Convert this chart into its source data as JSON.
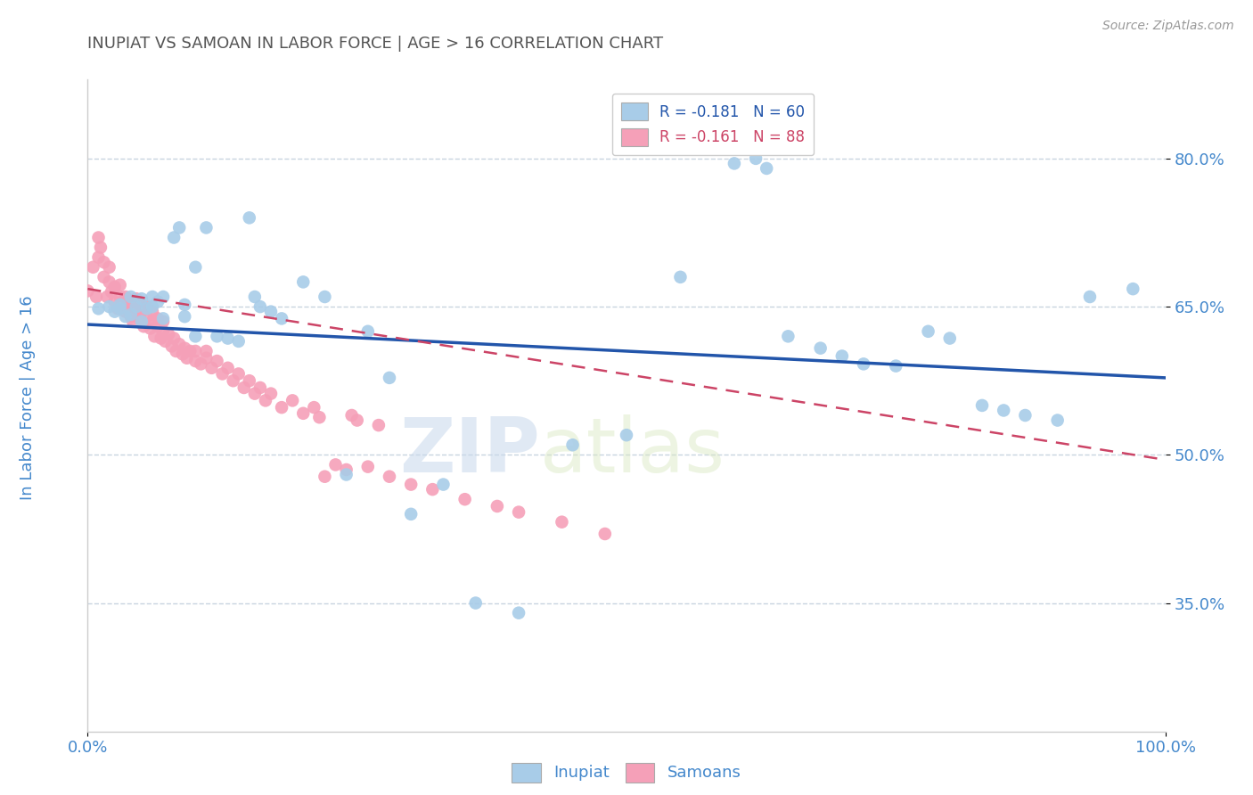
{
  "title": "INUPIAT VS SAMOAN IN LABOR FORCE | AGE > 16 CORRELATION CHART",
  "source": "Source: ZipAtlas.com",
  "ylabel": "In Labor Force | Age > 16",
  "watermark_zip": "ZIP",
  "watermark_atlas": "atlas",
  "legend_inupiat": "R = -0.181   N = 60",
  "legend_samoans": "R = -0.161   N = 88",
  "inupiat_color": "#a8cce8",
  "samoan_color": "#f5a0b8",
  "inupiat_line_color": "#2255aa",
  "samoan_line_color": "#cc4466",
  "title_color": "#555555",
  "axis_label_color": "#4488cc",
  "tick_color": "#4488cc",
  "grid_color": "#c8d4e0",
  "background_color": "#ffffff",
  "xlim": [
    0.0,
    1.0
  ],
  "ylim": [
    0.22,
    0.88
  ],
  "yticks": [
    0.35,
    0.5,
    0.65,
    0.8
  ],
  "ytick_labels": [
    "35.0%",
    "50.0%",
    "65.0%",
    "80.0%"
  ],
  "inupiat_line_x": [
    0.0,
    1.0
  ],
  "inupiat_line_y": [
    0.632,
    0.578
  ],
  "samoan_line_x": [
    0.0,
    1.0
  ],
  "samoan_line_y": [
    0.668,
    0.495
  ],
  "inupiat_x": [
    0.01,
    0.02,
    0.025,
    0.03,
    0.03,
    0.035,
    0.04,
    0.04,
    0.045,
    0.05,
    0.05,
    0.055,
    0.06,
    0.06,
    0.065,
    0.07,
    0.07,
    0.08,
    0.085,
    0.09,
    0.09,
    0.1,
    0.1,
    0.11,
    0.12,
    0.13,
    0.14,
    0.15,
    0.155,
    0.16,
    0.17,
    0.18,
    0.2,
    0.22,
    0.24,
    0.26,
    0.28,
    0.3,
    0.33,
    0.36,
    0.4,
    0.45,
    0.5,
    0.55,
    0.6,
    0.62,
    0.63,
    0.65,
    0.68,
    0.7,
    0.72,
    0.75,
    0.78,
    0.8,
    0.83,
    0.85,
    0.87,
    0.9,
    0.93,
    0.97
  ],
  "inupiat_y": [
    0.648,
    0.65,
    0.645,
    0.648,
    0.652,
    0.64,
    0.66,
    0.642,
    0.65,
    0.635,
    0.658,
    0.648,
    0.66,
    0.65,
    0.655,
    0.638,
    0.66,
    0.72,
    0.73,
    0.652,
    0.64,
    0.69,
    0.62,
    0.73,
    0.62,
    0.618,
    0.615,
    0.74,
    0.66,
    0.65,
    0.645,
    0.638,
    0.675,
    0.66,
    0.48,
    0.625,
    0.578,
    0.44,
    0.47,
    0.35,
    0.34,
    0.51,
    0.52,
    0.68,
    0.795,
    0.8,
    0.79,
    0.62,
    0.608,
    0.6,
    0.592,
    0.59,
    0.625,
    0.618,
    0.55,
    0.545,
    0.54,
    0.535,
    0.66,
    0.668
  ],
  "samoan_x": [
    0.0,
    0.005,
    0.008,
    0.01,
    0.01,
    0.012,
    0.015,
    0.015,
    0.018,
    0.02,
    0.02,
    0.022,
    0.025,
    0.025,
    0.028,
    0.03,
    0.03,
    0.032,
    0.035,
    0.035,
    0.038,
    0.04,
    0.04,
    0.042,
    0.045,
    0.045,
    0.048,
    0.05,
    0.05,
    0.052,
    0.055,
    0.055,
    0.058,
    0.06,
    0.06,
    0.062,
    0.065,
    0.065,
    0.068,
    0.07,
    0.07,
    0.072,
    0.075,
    0.078,
    0.08,
    0.082,
    0.085,
    0.088,
    0.09,
    0.092,
    0.095,
    0.1,
    0.1,
    0.105,
    0.11,
    0.11,
    0.115,
    0.12,
    0.125,
    0.13,
    0.135,
    0.14,
    0.145,
    0.15,
    0.155,
    0.16,
    0.165,
    0.17,
    0.18,
    0.19,
    0.2,
    0.21,
    0.215,
    0.22,
    0.23,
    0.24,
    0.245,
    0.25,
    0.26,
    0.27,
    0.28,
    0.3,
    0.32,
    0.35,
    0.38,
    0.4,
    0.44,
    0.48
  ],
  "samoan_y": [
    0.666,
    0.69,
    0.66,
    0.72,
    0.7,
    0.71,
    0.695,
    0.68,
    0.66,
    0.69,
    0.675,
    0.665,
    0.655,
    0.67,
    0.648,
    0.66,
    0.672,
    0.65,
    0.66,
    0.645,
    0.655,
    0.64,
    0.652,
    0.635,
    0.648,
    0.658,
    0.638,
    0.645,
    0.652,
    0.63,
    0.64,
    0.65,
    0.628,
    0.635,
    0.645,
    0.62,
    0.63,
    0.638,
    0.618,
    0.625,
    0.635,
    0.615,
    0.622,
    0.61,
    0.618,
    0.605,
    0.612,
    0.602,
    0.608,
    0.598,
    0.605,
    0.595,
    0.605,
    0.592,
    0.598,
    0.605,
    0.588,
    0.595,
    0.582,
    0.588,
    0.575,
    0.582,
    0.568,
    0.575,
    0.562,
    0.568,
    0.555,
    0.562,
    0.548,
    0.555,
    0.542,
    0.548,
    0.538,
    0.478,
    0.49,
    0.485,
    0.54,
    0.535,
    0.488,
    0.53,
    0.478,
    0.47,
    0.465,
    0.455,
    0.448,
    0.442,
    0.432,
    0.42
  ]
}
